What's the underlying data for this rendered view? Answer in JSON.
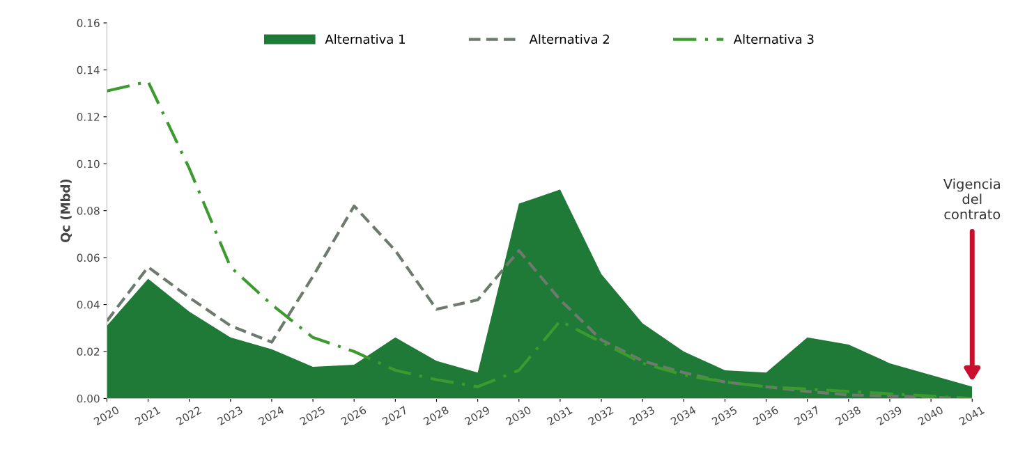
{
  "chart_data": {
    "type": "line",
    "ylabel": "Qc (Mbd)",
    "categories": [
      "2020",
      "2021",
      "2022",
      "2023",
      "2024",
      "2025",
      "2026",
      "2027",
      "2028",
      "2029",
      "2030",
      "2031",
      "2032",
      "2033",
      "2034",
      "2035",
      "2036",
      "2037",
      "2038",
      "2039",
      "2040",
      "2041"
    ],
    "series": [
      {
        "name": "Alternativa 1",
        "type": "area",
        "color": "#1e7a36",
        "values": [
          0.031,
          0.051,
          0.037,
          0.026,
          0.021,
          0.0135,
          0.0144,
          0.026,
          0.016,
          0.011,
          0.083,
          0.089,
          0.053,
          0.032,
          0.02,
          0.012,
          0.011,
          0.026,
          0.023,
          0.015,
          0.01,
          0.005
        ]
      },
      {
        "name": "Alternativa 2",
        "line_style": "dashed",
        "color": "#6e7a6e",
        "values": [
          0.033,
          0.056,
          0.043,
          0.031,
          0.024,
          0.052,
          0.082,
          0.063,
          0.038,
          0.042,
          0.063,
          0.042,
          0.025,
          0.016,
          0.011,
          0.007,
          0.005,
          0.003,
          0.0015,
          0.001,
          0.0005,
          0.0
        ]
      },
      {
        "name": "Alternativa 3",
        "line_style": "dashdot",
        "color": "#3c9a2e",
        "values": [
          0.131,
          0.135,
          0.098,
          0.056,
          0.04,
          0.026,
          0.02,
          0.012,
          0.008,
          0.005,
          0.012,
          0.033,
          0.024,
          0.015,
          0.01,
          0.007,
          0.005,
          0.004,
          0.003,
          0.002,
          0.001,
          0.0
        ]
      }
    ],
    "ylim": [
      0,
      0.16
    ],
    "yticks": [
      {
        "value": 0,
        "label": "0.00"
      },
      {
        "value": 0.02,
        "label": "0.02"
      },
      {
        "value": 0.04,
        "label": "0.04"
      },
      {
        "value": 0.06,
        "label": "0.06"
      },
      {
        "value": 0.08,
        "label": "0.08"
      },
      {
        "value": 0.1,
        "label": "0.10"
      },
      {
        "value": 0.12,
        "label": "0.12"
      },
      {
        "value": 0.14,
        "label": "0.14"
      },
      {
        "value": 0.16,
        "label": "0.16"
      }
    ],
    "annotations": [
      "Vigencia\ndel\ncontrato"
    ],
    "legend": "top",
    "grid": false
  }
}
